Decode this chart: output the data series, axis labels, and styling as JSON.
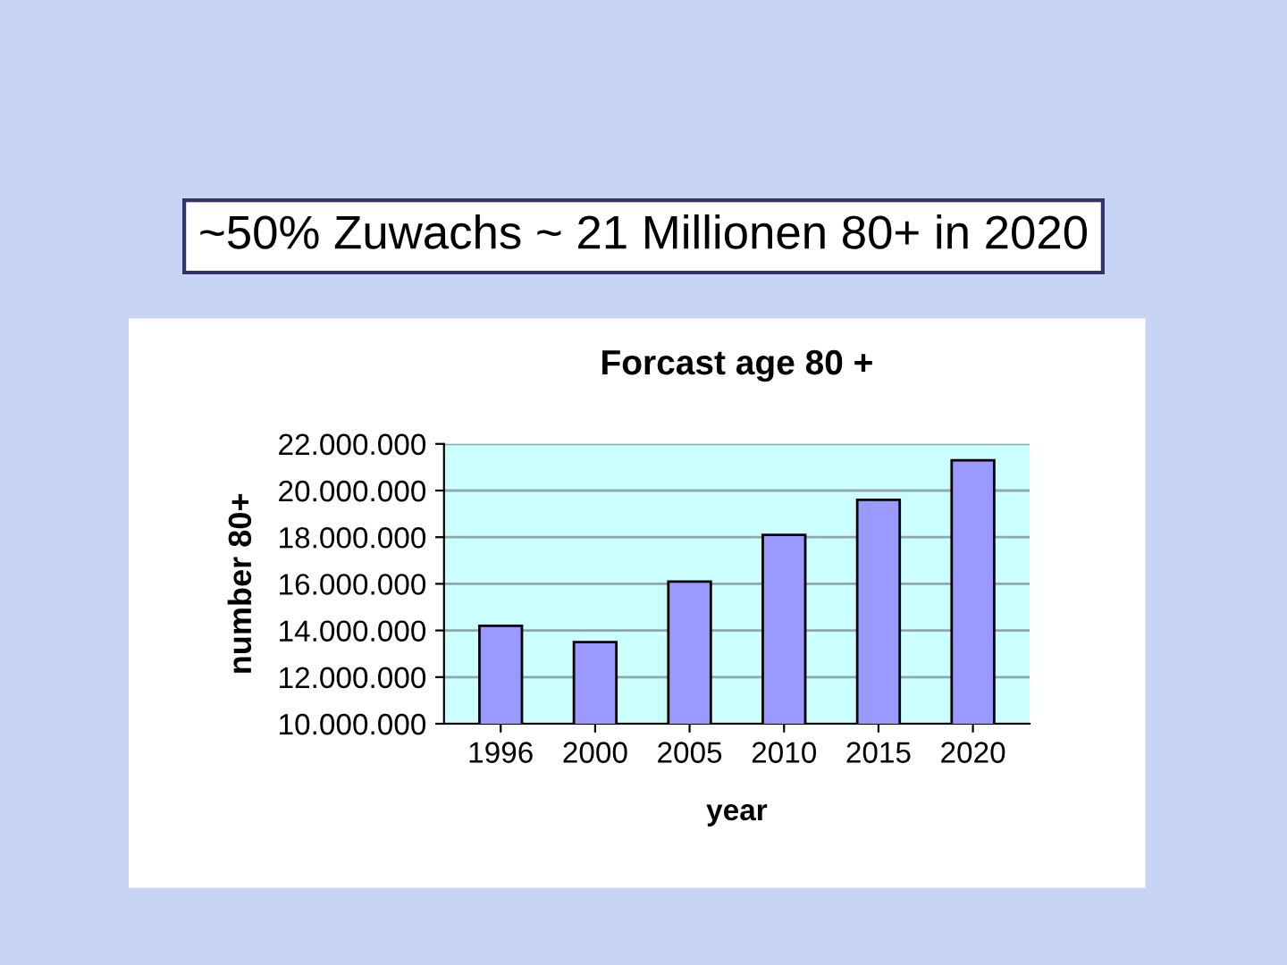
{
  "chart_data": {
    "type": "bar",
    "title": "Forcast age 80 +",
    "xlabel": "year",
    "ylabel": "number 80+",
    "annotations": [
      "~50% Zuwachs ~ 21 Millionen 80+ in 2020"
    ],
    "categories": [
      "1996",
      "2000",
      "2005",
      "2010",
      "2015",
      "2020"
    ],
    "values": [
      14200000,
      13500000,
      16100000,
      18100000,
      19600000,
      21300000
    ],
    "color": "#9999ff",
    "ylim": [
      10000000,
      22000000
    ],
    "yticks": [
      {
        "value": 10000000,
        "label": "10.000.000"
      },
      {
        "value": 12000000,
        "label": "12.000.000"
      },
      {
        "value": 14000000,
        "label": "14.000.000"
      },
      {
        "value": 16000000,
        "label": "16.000.000"
      },
      {
        "value": 18000000,
        "label": "18.000.000"
      },
      {
        "value": 20000000,
        "label": "20.000.000"
      },
      {
        "value": 22000000,
        "label": "22.000.000"
      }
    ],
    "grid": "y",
    "legend": false
  }
}
